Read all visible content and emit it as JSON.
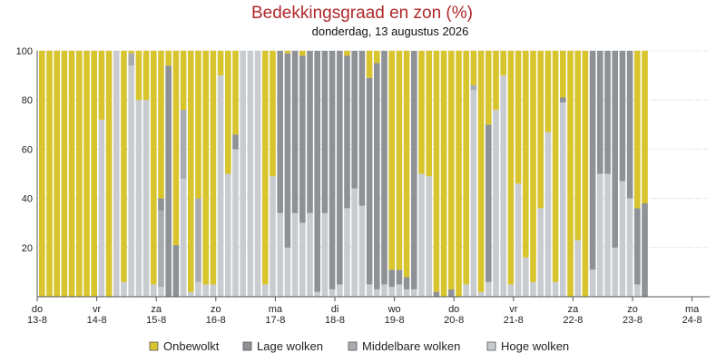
{
  "chart_data": {
    "type": "bar",
    "stacked": true,
    "title": "Bedekkingsgraad en zon (%)",
    "subtitle": "donderdag, 13 augustus 2026",
    "ylim": [
      0,
      100
    ],
    "yticks": [
      0,
      20,
      40,
      60,
      80,
      100
    ],
    "ytick_labels": [
      "",
      "20",
      "40",
      "60",
      "80",
      "100"
    ],
    "grid": true,
    "legend_position": "bottom",
    "bars_per_day": 8,
    "day_labels": [
      {
        "day": "do",
        "date": "13-8"
      },
      {
        "day": "vr",
        "date": "14-8"
      },
      {
        "day": "za",
        "date": "15-8"
      },
      {
        "day": "zo",
        "date": "16-8"
      },
      {
        "day": "ma",
        "date": "17-8"
      },
      {
        "day": "di",
        "date": "18-8"
      },
      {
        "day": "wo",
        "date": "19-8"
      },
      {
        "day": "do",
        "date": "20-8"
      },
      {
        "day": "vr",
        "date": "21-8"
      },
      {
        "day": "za",
        "date": "22-8"
      },
      {
        "day": "zo",
        "date": "23-8"
      },
      {
        "day": "ma",
        "date": "24-8"
      }
    ],
    "series": [
      {
        "name": "Hoge wolken",
        "color": "#c8ccd0",
        "values": [
          0,
          0,
          0,
          0,
          0,
          0,
          0,
          0,
          72,
          0,
          100,
          6,
          94,
          80,
          80,
          5,
          4,
          0,
          0,
          48,
          2,
          6,
          5,
          5,
          90,
          50,
          60,
          100,
          100,
          100,
          5,
          49,
          34,
          20,
          34,
          30,
          34,
          2,
          34,
          3,
          5,
          36,
          44,
          37,
          5,
          3,
          5,
          4,
          5,
          3,
          3,
          50,
          49,
          0,
          0,
          0,
          0,
          5,
          84,
          2,
          6,
          76,
          90,
          5,
          46,
          16,
          6,
          36,
          67,
          6,
          79,
          0,
          23,
          0,
          11,
          50,
          50,
          20,
          47,
          40,
          5,
          0
        ]
      },
      {
        "name": "Middelbare wolken",
        "color": "#a8abaf",
        "values": [
          0,
          0,
          0,
          0,
          0,
          0,
          0,
          0,
          0,
          0,
          0,
          0,
          5,
          0,
          0,
          0,
          31,
          0,
          0,
          28,
          0,
          34,
          0,
          0,
          0,
          0,
          0,
          0,
          0,
          0,
          0,
          0,
          0,
          0,
          0,
          0,
          0,
          0,
          0,
          0,
          0,
          0,
          0,
          0,
          0,
          0,
          0,
          0,
          0,
          0,
          0,
          0,
          0,
          0,
          0,
          0,
          0,
          0,
          2,
          0,
          0,
          0,
          0,
          0,
          0,
          0,
          0,
          0,
          0,
          0,
          0,
          0,
          0,
          0,
          0,
          0,
          0,
          0,
          0,
          0,
          0,
          0
        ]
      },
      {
        "name": "Lage wolken",
        "color": "#8e9195",
        "values": [
          0,
          0,
          0,
          0,
          0,
          0,
          0,
          0,
          0,
          0,
          0,
          0,
          0,
          0,
          0,
          0,
          5,
          94,
          21,
          0,
          0,
          0,
          0,
          0,
          0,
          0,
          6,
          0,
          0,
          0,
          0,
          0,
          66,
          79,
          66,
          68,
          66,
          98,
          66,
          97,
          95,
          62,
          56,
          63,
          84,
          92,
          95,
          7,
          6,
          5,
          97,
          0,
          0,
          2,
          0,
          3,
          0,
          0,
          0,
          0,
          64,
          0,
          0,
          0,
          0,
          0,
          0,
          0,
          0,
          0,
          2,
          0,
          0,
          0,
          89,
          50,
          50,
          80,
          53,
          60,
          31,
          38
        ]
      },
      {
        "name": "Onbewolkt",
        "color": "#d8c42c",
        "values": [
          100,
          100,
          100,
          100,
          100,
          100,
          100,
          100,
          28,
          100,
          0,
          94,
          1,
          20,
          20,
          95,
          60,
          6,
          79,
          24,
          98,
          60,
          95,
          95,
          10,
          50,
          34,
          0,
          0,
          0,
          95,
          51,
          0,
          1,
          0,
          2,
          0,
          0,
          0,
          0,
          0,
          2,
          0,
          0,
          11,
          5,
          0,
          89,
          89,
          92,
          0,
          50,
          51,
          98,
          100,
          97,
          100,
          95,
          14,
          98,
          30,
          24,
          10,
          95,
          54,
          84,
          94,
          64,
          33,
          94,
          19,
          100,
          77,
          100,
          0,
          0,
          0,
          0,
          0,
          0,
          64,
          62
        ]
      }
    ]
  }
}
